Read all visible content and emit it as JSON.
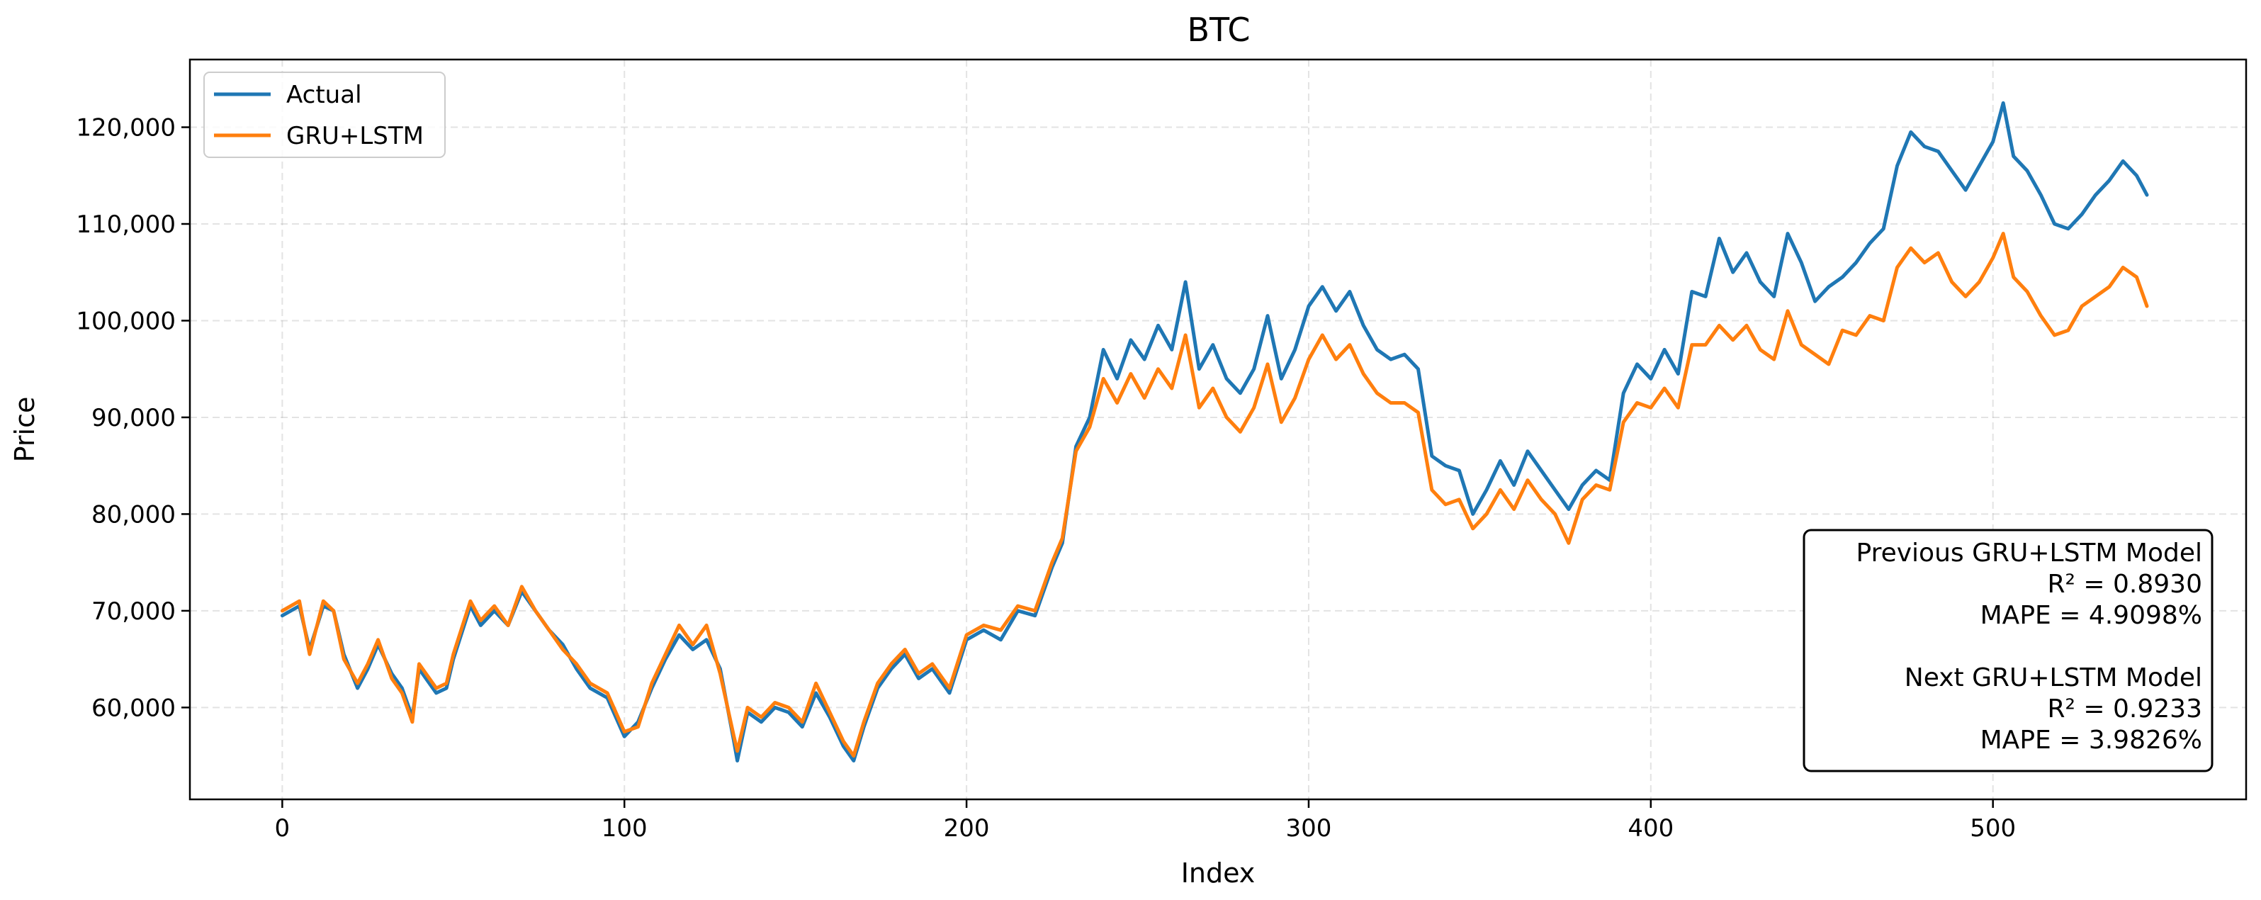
{
  "chart_data": {
    "type": "line",
    "title": "BTC",
    "xlabel": "Index",
    "ylabel": "Price",
    "xlim": [
      -27,
      574
    ],
    "ylim": [
      50500,
      127000
    ],
    "xticks": [
      0,
      100,
      200,
      300,
      400,
      500
    ],
    "xtick_labels": [
      "0",
      "100",
      "200",
      "300",
      "400",
      "500"
    ],
    "yticks": [
      60000,
      70000,
      80000,
      90000,
      100000,
      110000,
      120000
    ],
    "ytick_labels": [
      "60,000",
      "70,000",
      "80,000",
      "90,000",
      "100,000",
      "110,000",
      "120,000"
    ],
    "grid": true,
    "legend_position": "top-left",
    "series": [
      {
        "name": "Actual",
        "color": "#1f77b4",
        "points": [
          [
            0,
            69500
          ],
          [
            5,
            70500
          ],
          [
            8,
            66000
          ],
          [
            12,
            70500
          ],
          [
            15,
            70000
          ],
          [
            18,
            65500
          ],
          [
            22,
            62000
          ],
          [
            25,
            64000
          ],
          [
            28,
            66500
          ],
          [
            32,
            63500
          ],
          [
            35,
            62000
          ],
          [
            38,
            59000
          ],
          [
            40,
            64000
          ],
          [
            45,
            61500
          ],
          [
            48,
            62000
          ],
          [
            50,
            65000
          ],
          [
            55,
            70500
          ],
          [
            58,
            68500
          ],
          [
            62,
            70000
          ],
          [
            66,
            68500
          ],
          [
            70,
            72000
          ],
          [
            74,
            70000
          ],
          [
            78,
            68000
          ],
          [
            82,
            66500
          ],
          [
            86,
            64000
          ],
          [
            90,
            62000
          ],
          [
            95,
            61000
          ],
          [
            100,
            57000
          ],
          [
            104,
            58500
          ],
          [
            108,
            62000
          ],
          [
            112,
            65000
          ],
          [
            116,
            67500
          ],
          [
            120,
            66000
          ],
          [
            124,
            67000
          ],
          [
            128,
            64000
          ],
          [
            132,
            56500
          ],
          [
            133,
            54500
          ],
          [
            136,
            59500
          ],
          [
            140,
            58500
          ],
          [
            144,
            60000
          ],
          [
            148,
            59500
          ],
          [
            152,
            58000
          ],
          [
            156,
            61500
          ],
          [
            160,
            59000
          ],
          [
            164,
            56000
          ],
          [
            167,
            54500
          ],
          [
            170,
            58000
          ],
          [
            174,
            62000
          ],
          [
            178,
            64000
          ],
          [
            182,
            65500
          ],
          [
            186,
            63000
          ],
          [
            190,
            64000
          ],
          [
            195,
            61500
          ],
          [
            200,
            67000
          ],
          [
            205,
            68000
          ],
          [
            210,
            67000
          ],
          [
            215,
            70000
          ],
          [
            220,
            69500
          ],
          [
            225,
            74500
          ],
          [
            228,
            77000
          ],
          [
            232,
            87000
          ],
          [
            236,
            90000
          ],
          [
            240,
            97000
          ],
          [
            244,
            94000
          ],
          [
            248,
            98000
          ],
          [
            252,
            96000
          ],
          [
            256,
            99500
          ],
          [
            260,
            97000
          ],
          [
            264,
            104000
          ],
          [
            268,
            95000
          ],
          [
            272,
            97500
          ],
          [
            276,
            94000
          ],
          [
            280,
            92500
          ],
          [
            284,
            95000
          ],
          [
            288,
            100500
          ],
          [
            292,
            94000
          ],
          [
            296,
            97000
          ],
          [
            300,
            101500
          ],
          [
            304,
            103500
          ],
          [
            308,
            101000
          ],
          [
            312,
            103000
          ],
          [
            316,
            99500
          ],
          [
            320,
            97000
          ],
          [
            324,
            96000
          ],
          [
            328,
            96500
          ],
          [
            332,
            95000
          ],
          [
            336,
            86000
          ],
          [
            340,
            85000
          ],
          [
            344,
            84500
          ],
          [
            348,
            80000
          ],
          [
            352,
            82500
          ],
          [
            356,
            85500
          ],
          [
            360,
            83000
          ],
          [
            364,
            86500
          ],
          [
            368,
            84500
          ],
          [
            372,
            82500
          ],
          [
            376,
            80500
          ],
          [
            380,
            83000
          ],
          [
            384,
            84500
          ],
          [
            388,
            83500
          ],
          [
            392,
            92500
          ],
          [
            396,
            95500
          ],
          [
            400,
            94000
          ],
          [
            404,
            97000
          ],
          [
            408,
            94500
          ],
          [
            412,
            103000
          ],
          [
            416,
            102500
          ],
          [
            420,
            108500
          ],
          [
            424,
            105000
          ],
          [
            428,
            107000
          ],
          [
            432,
            104000
          ],
          [
            436,
            102500
          ],
          [
            440,
            109000
          ],
          [
            444,
            106000
          ],
          [
            448,
            102000
          ],
          [
            452,
            103500
          ],
          [
            456,
            104500
          ],
          [
            460,
            106000
          ],
          [
            464,
            108000
          ],
          [
            468,
            109500
          ],
          [
            472,
            116000
          ],
          [
            476,
            119500
          ],
          [
            480,
            118000
          ],
          [
            484,
            117500
          ],
          [
            488,
            115500
          ],
          [
            492,
            113500
          ],
          [
            496,
            116000
          ],
          [
            500,
            118500
          ],
          [
            503,
            122500
          ],
          [
            506,
            117000
          ],
          [
            510,
            115500
          ],
          [
            514,
            113000
          ],
          [
            518,
            110000
          ],
          [
            522,
            109500
          ],
          [
            526,
            111000
          ],
          [
            530,
            113000
          ],
          [
            534,
            114500
          ],
          [
            538,
            116500
          ],
          [
            542,
            115000
          ],
          [
            545,
            113000
          ]
        ]
      },
      {
        "name": "GRU+LSTM",
        "color": "#ff7f0e",
        "points": [
          [
            0,
            70000
          ],
          [
            5,
            71000
          ],
          [
            8,
            65500
          ],
          [
            12,
            71000
          ],
          [
            15,
            70000
          ],
          [
            18,
            65000
          ],
          [
            22,
            62500
          ],
          [
            25,
            64500
          ],
          [
            28,
            67000
          ],
          [
            32,
            63000
          ],
          [
            35,
            61500
          ],
          [
            38,
            58500
          ],
          [
            40,
            64500
          ],
          [
            45,
            62000
          ],
          [
            48,
            62500
          ],
          [
            50,
            65500
          ],
          [
            55,
            71000
          ],
          [
            58,
            69000
          ],
          [
            62,
            70500
          ],
          [
            66,
            68500
          ],
          [
            70,
            72500
          ],
          [
            74,
            70000
          ],
          [
            78,
            68000
          ],
          [
            82,
            66000
          ],
          [
            86,
            64500
          ],
          [
            90,
            62500
          ],
          [
            95,
            61500
          ],
          [
            100,
            57500
          ],
          [
            104,
            58000
          ],
          [
            108,
            62500
          ],
          [
            112,
            65500
          ],
          [
            116,
            68500
          ],
          [
            120,
            66500
          ],
          [
            124,
            68500
          ],
          [
            128,
            63500
          ],
          [
            132,
            57000
          ],
          [
            133,
            55500
          ],
          [
            136,
            60000
          ],
          [
            140,
            59000
          ],
          [
            144,
            60500
          ],
          [
            148,
            60000
          ],
          [
            152,
            58500
          ],
          [
            156,
            62500
          ],
          [
            160,
            59500
          ],
          [
            164,
            56500
          ],
          [
            167,
            55000
          ],
          [
            170,
            58500
          ],
          [
            174,
            62500
          ],
          [
            178,
            64500
          ],
          [
            182,
            66000
          ],
          [
            186,
            63500
          ],
          [
            190,
            64500
          ],
          [
            195,
            62000
          ],
          [
            200,
            67500
          ],
          [
            205,
            68500
          ],
          [
            210,
            68000
          ],
          [
            215,
            70500
          ],
          [
            220,
            70000
          ],
          [
            225,
            75000
          ],
          [
            228,
            77500
          ],
          [
            232,
            86500
          ],
          [
            236,
            89000
          ],
          [
            240,
            94000
          ],
          [
            244,
            91500
          ],
          [
            248,
            94500
          ],
          [
            252,
            92000
          ],
          [
            256,
            95000
          ],
          [
            260,
            93000
          ],
          [
            264,
            98500
          ],
          [
            268,
            91000
          ],
          [
            272,
            93000
          ],
          [
            276,
            90000
          ],
          [
            280,
            88500
          ],
          [
            284,
            91000
          ],
          [
            288,
            95500
          ],
          [
            292,
            89500
          ],
          [
            296,
            92000
          ],
          [
            300,
            96000
          ],
          [
            304,
            98500
          ],
          [
            308,
            96000
          ],
          [
            312,
            97500
          ],
          [
            316,
            94500
          ],
          [
            320,
            92500
          ],
          [
            324,
            91500
          ],
          [
            328,
            91500
          ],
          [
            332,
            90500
          ],
          [
            336,
            82500
          ],
          [
            340,
            81000
          ],
          [
            344,
            81500
          ],
          [
            348,
            78500
          ],
          [
            352,
            80000
          ],
          [
            356,
            82500
          ],
          [
            360,
            80500
          ],
          [
            364,
            83500
          ],
          [
            368,
            81500
          ],
          [
            372,
            80000
          ],
          [
            376,
            77000
          ],
          [
            380,
            81500
          ],
          [
            384,
            83000
          ],
          [
            388,
            82500
          ],
          [
            392,
            89500
          ],
          [
            396,
            91500
          ],
          [
            400,
            91000
          ],
          [
            404,
            93000
          ],
          [
            408,
            91000
          ],
          [
            412,
            97500
          ],
          [
            416,
            97500
          ],
          [
            420,
            99500
          ],
          [
            424,
            98000
          ],
          [
            428,
            99500
          ],
          [
            432,
            97000
          ],
          [
            436,
            96000
          ],
          [
            440,
            101000
          ],
          [
            444,
            97500
          ],
          [
            448,
            96500
          ],
          [
            452,
            95500
          ],
          [
            456,
            99000
          ],
          [
            460,
            98500
          ],
          [
            464,
            100500
          ],
          [
            468,
            100000
          ],
          [
            472,
            105500
          ],
          [
            476,
            107500
          ],
          [
            480,
            106000
          ],
          [
            484,
            107000
          ],
          [
            488,
            104000
          ],
          [
            492,
            102500
          ],
          [
            496,
            104000
          ],
          [
            500,
            106500
          ],
          [
            503,
            109000
          ],
          [
            506,
            104500
          ],
          [
            510,
            103000
          ],
          [
            514,
            100500
          ],
          [
            518,
            98500
          ],
          [
            522,
            99000
          ],
          [
            526,
            101500
          ],
          [
            530,
            102500
          ],
          [
            534,
            103500
          ],
          [
            538,
            105500
          ],
          [
            542,
            104500
          ],
          [
            545,
            101500
          ]
        ]
      }
    ],
    "annotation": {
      "lines": [
        "Previous GRU+LSTM Model",
        "R²   = 0.8930",
        "MAPE = 4.9098%",
        "",
        "Next GRU+LSTM Model",
        "R²   = 0.9233",
        "MAPE = 3.9826%"
      ],
      "position": "bottom-right"
    }
  }
}
